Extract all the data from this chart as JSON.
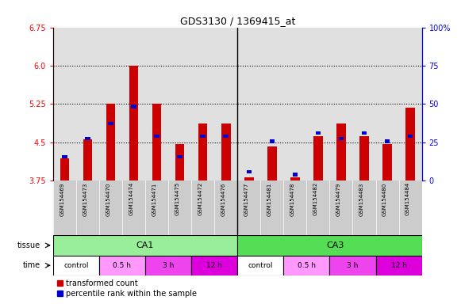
{
  "title": "GDS3130 / 1369415_at",
  "samples": [
    "GSM154469",
    "GSM154473",
    "GSM154470",
    "GSM154474",
    "GSM154471",
    "GSM154475",
    "GSM154472",
    "GSM154476",
    "GSM154477",
    "GSM154481",
    "GSM154478",
    "GSM154482",
    "GSM154479",
    "GSM154483",
    "GSM154480",
    "GSM154484"
  ],
  "red_values": [
    4.18,
    4.55,
    5.25,
    6.0,
    5.25,
    4.47,
    4.87,
    4.87,
    3.82,
    4.42,
    3.82,
    4.62,
    4.87,
    4.62,
    4.47,
    5.17
  ],
  "blue_values": [
    4.22,
    4.57,
    4.87,
    5.2,
    4.62,
    4.22,
    4.62,
    4.62,
    3.92,
    4.52,
    3.87,
    4.68,
    4.57,
    4.68,
    4.52,
    4.62
  ],
  "ymin": 3.75,
  "ymax": 6.75,
  "yticks_left": [
    3.75,
    4.5,
    5.25,
    6.0,
    6.75
  ],
  "yticks_right_vals": [
    0,
    25,
    50,
    75,
    100
  ],
  "yticks_right_labels": [
    "0",
    "25",
    "50",
    "75",
    "100%"
  ],
  "dotted_lines": [
    4.5,
    5.25,
    6.0
  ],
  "bar_color_red": "#cc0000",
  "bar_color_blue": "#0000cc",
  "ca1_color": "#99ee99",
  "ca3_color": "#55dd55",
  "time_colors": [
    "#ffffff",
    "#ff99ff",
    "#ee44ee",
    "#dd00dd"
  ],
  "time_labels": [
    "control",
    "0.5 h",
    "3 h",
    "12 h"
  ],
  "bar_width": 0.4,
  "xlabels_bg": "#cccccc"
}
